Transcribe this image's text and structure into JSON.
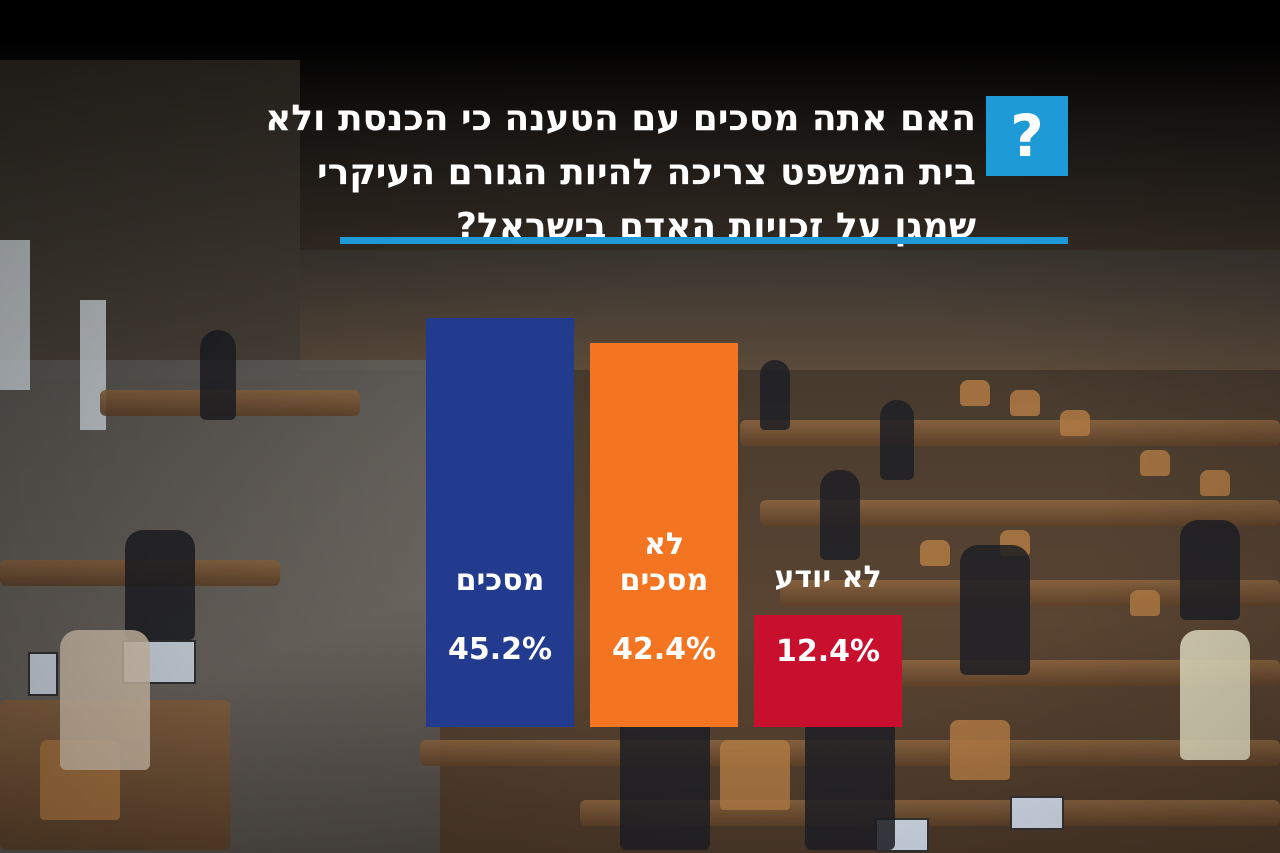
{
  "question": {
    "icon": "?",
    "lines": [
      "האם אתה מסכים עם הטענה כי הכנסת ולא",
      "בית המשפט צריכה להיות הגורם העיקרי",
      "שמגן על זכויות האדם בישראל?"
    ],
    "accent_color": "#1e9ad6"
  },
  "chart_data": {
    "type": "bar",
    "categories": [
      "מסכים",
      "לא מסכים",
      "לא יודע"
    ],
    "category_lines": [
      [
        "מסכים"
      ],
      [
        "לא",
        "מסכים"
      ],
      [
        "לא יודע"
      ]
    ],
    "values": [
      45.2,
      42.4,
      12.4
    ],
    "value_labels": [
      "45.2%",
      "42.4%",
      "12.4%"
    ],
    "colors": [
      "#233b8f",
      "#f47521",
      "#c8102e"
    ],
    "title": "האם אתה מסכים עם הטענה כי הכנסת ולא בית המשפט צריכה להיות הגורם העיקרי שמגן על זכויות האדם בישראל?"
  }
}
